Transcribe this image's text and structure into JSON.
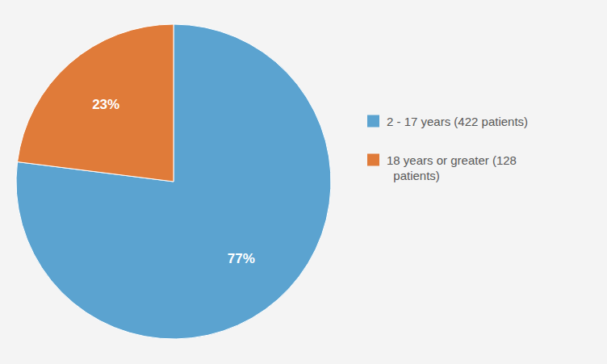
{
  "chart_data": {
    "type": "pie",
    "categories": [
      "2 - 17 years (422 patients)",
      "18 years or greater (128\n  patients)"
    ],
    "values": [
      77,
      23
    ],
    "value_labels": [
      "77%",
      "23%"
    ],
    "colors": [
      "#5BA3D0",
      "#E07B39"
    ],
    "data_labels": true,
    "legend": "right"
  }
}
